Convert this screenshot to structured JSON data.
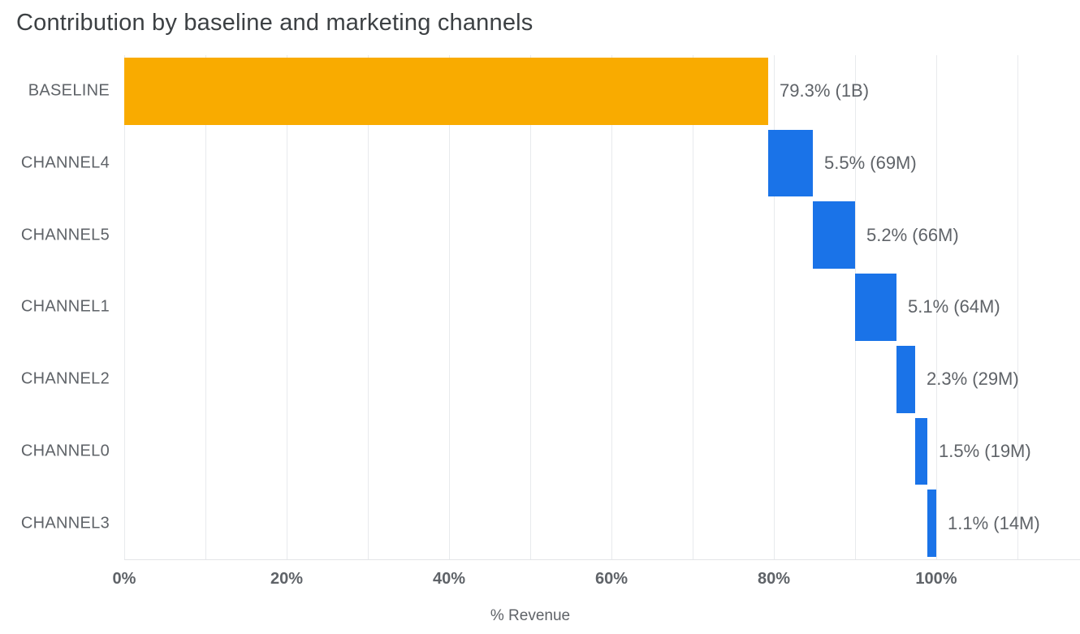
{
  "title": "Contribution by baseline and marketing channels",
  "chart_data": {
    "type": "bar",
    "subtype": "horizontal-waterfall",
    "title": "Contribution by baseline and marketing channels",
    "categories": [
      "BASELINE",
      "CHANNEL4",
      "CHANNEL5",
      "CHANNEL1",
      "CHANNEL2",
      "CHANNEL0",
      "CHANNEL3"
    ],
    "values": [
      79.3,
      5.5,
      5.2,
      5.1,
      2.3,
      1.5,
      1.1
    ],
    "data_labels": [
      "79.3% (1B)",
      "5.5% (69M)",
      "5.2% (66M)",
      "5.1% (64M)",
      "2.3% (29M)",
      "1.5% (19M)",
      "1.1% (14M)"
    ],
    "bar_colors": [
      "#F9AB00",
      "#1A73E8",
      "#1A73E8",
      "#1A73E8",
      "#1A73E8",
      "#1A73E8",
      "#1A73E8"
    ],
    "xlabel": "% Revenue",
    "ylabel": "",
    "x_ticks": [
      {
        "value": 0,
        "label": "0%"
      },
      {
        "value": 20,
        "label": "20%"
      },
      {
        "value": 40,
        "label": "40%"
      },
      {
        "value": 60,
        "label": "60%"
      },
      {
        "value": 80,
        "label": "80%"
      },
      {
        "value": 100,
        "label": "100%"
      }
    ],
    "xlim": [
      0,
      117.7
    ],
    "gridline_step": 10,
    "gridline_max": 110,
    "grid": true,
    "legend_position": "none",
    "grid_color": "#E8EAED",
    "text_color": "#5F6368"
  }
}
